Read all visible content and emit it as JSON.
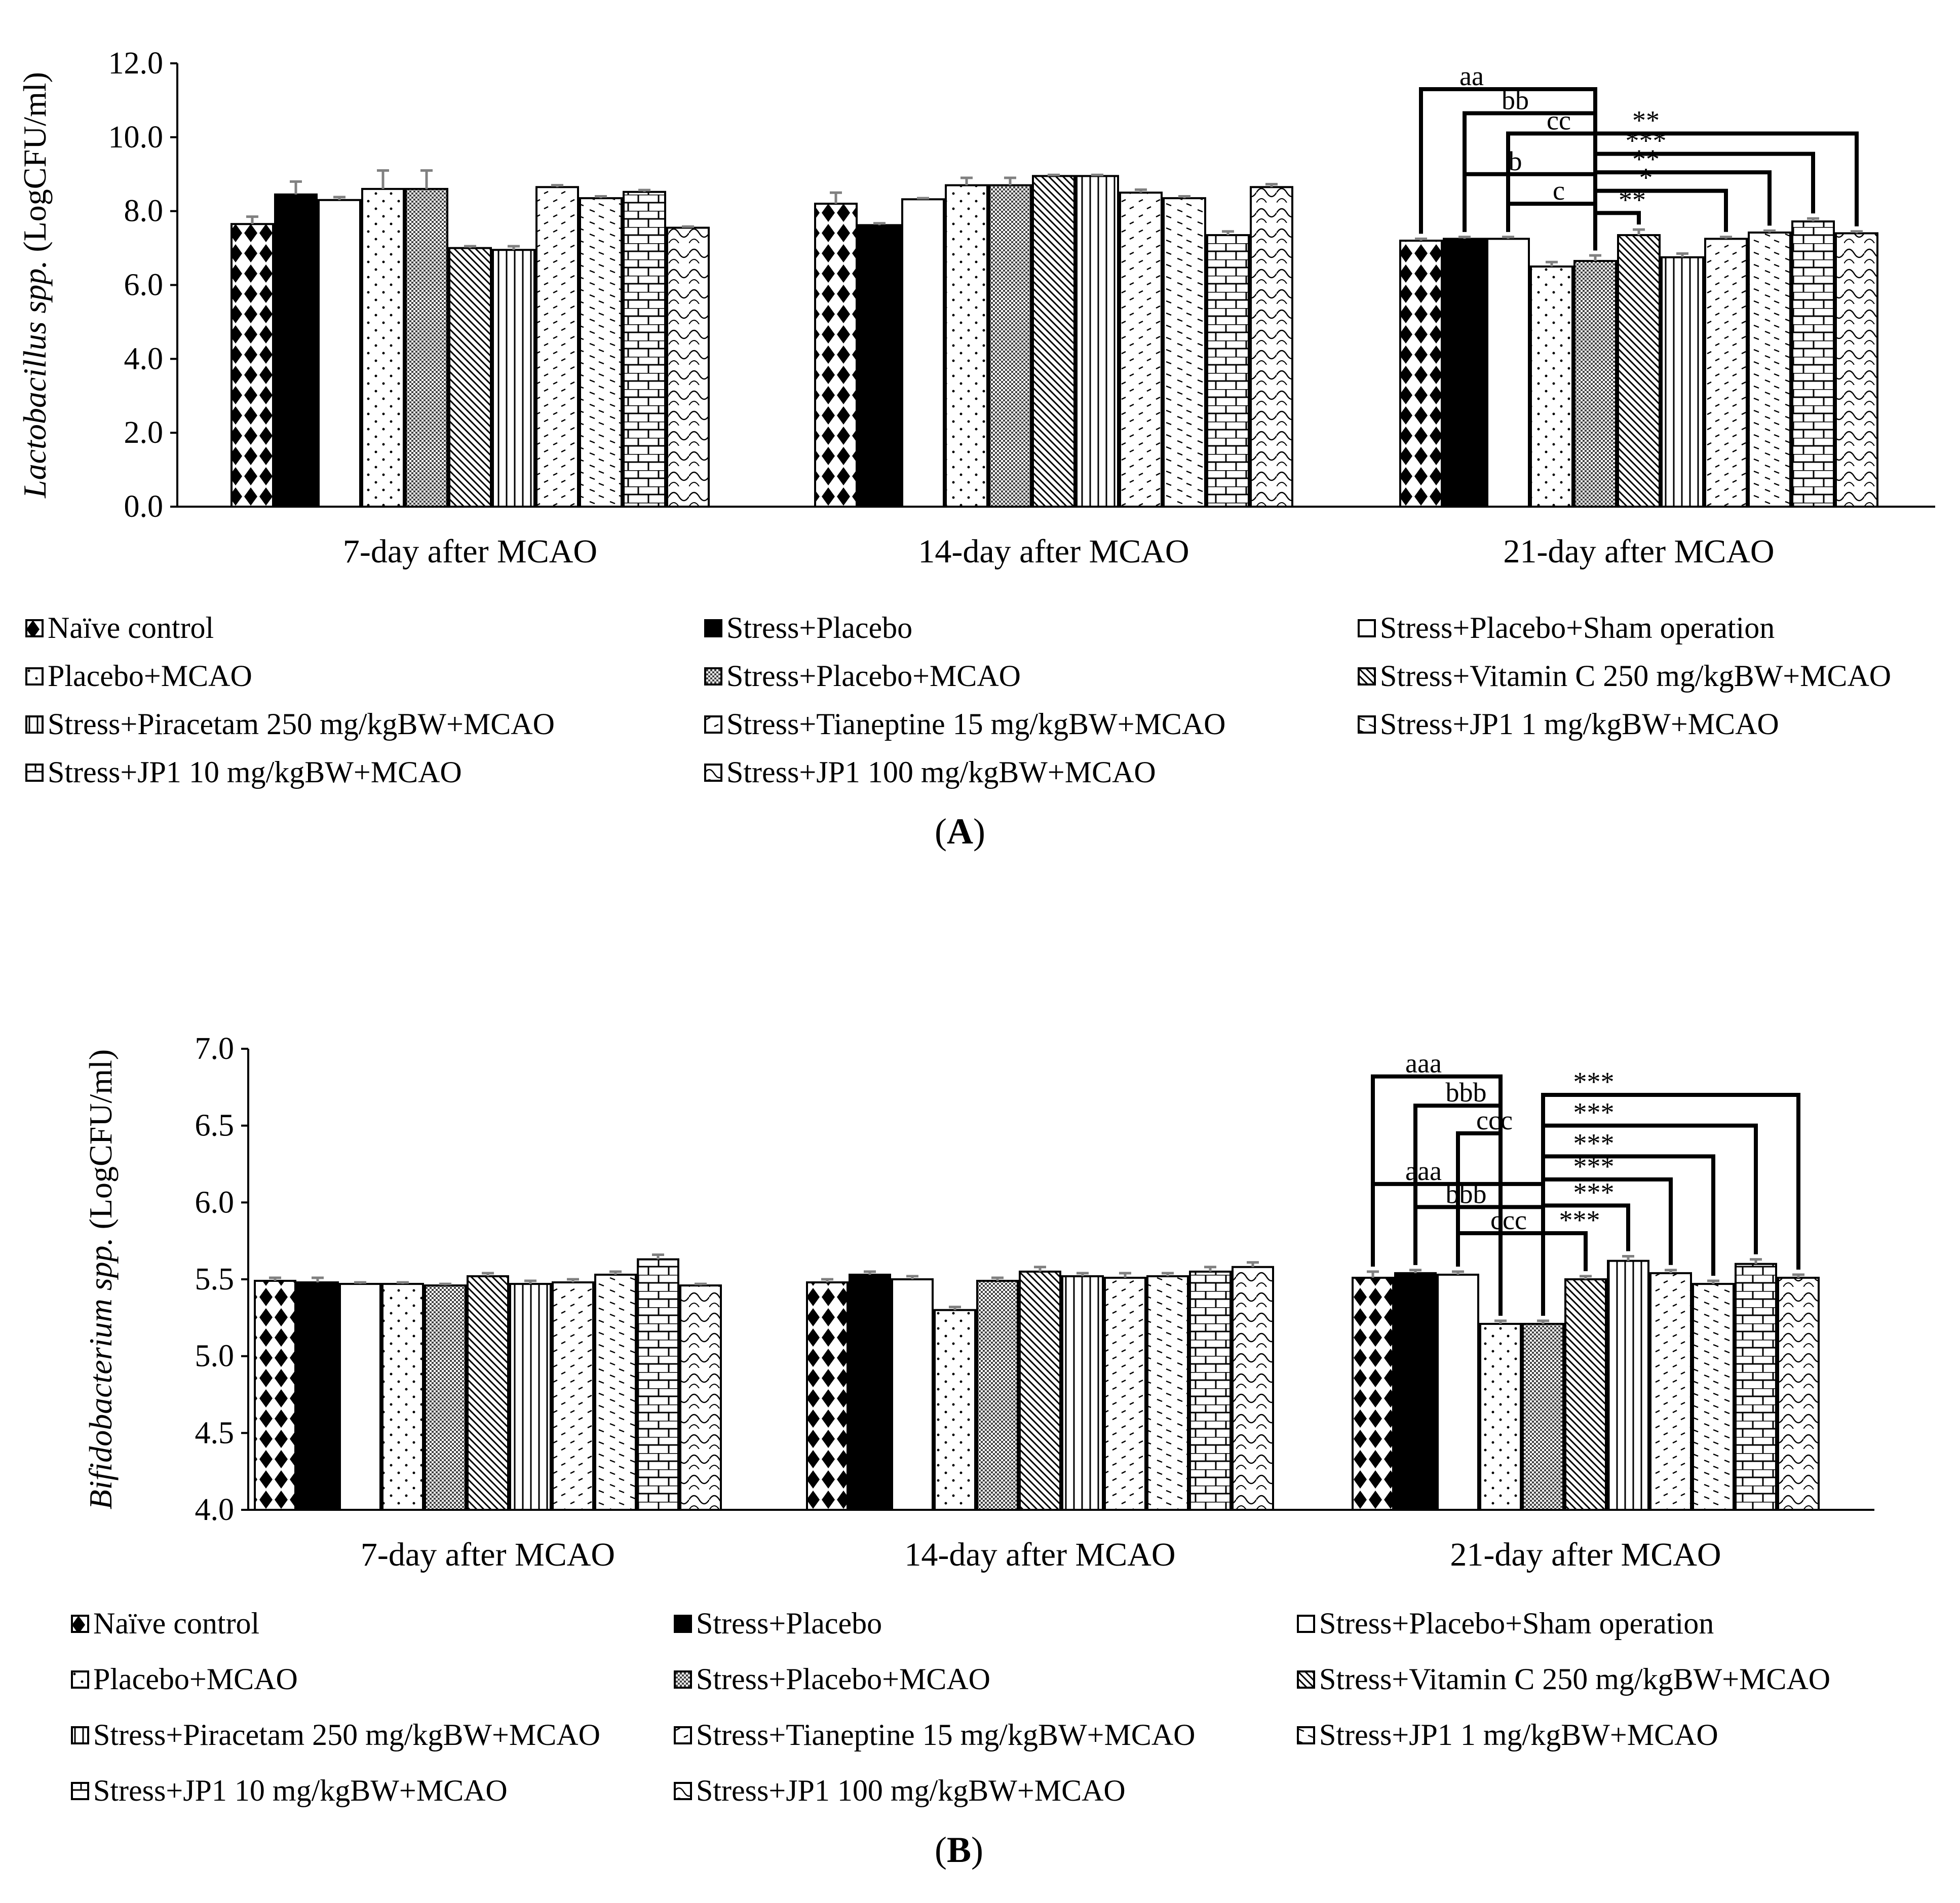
{
  "legend": [
    {
      "label": "Naïve control",
      "pattern": "diamond"
    },
    {
      "label": "Stress+Placebo",
      "pattern": "solid"
    },
    {
      "label": "Stress+Placebo+Sham operation",
      "pattern": "white"
    },
    {
      "label": "Placebo+MCAO",
      "pattern": "dots"
    },
    {
      "label": "Stress+Placebo+MCAO",
      "pattern": "grid"
    },
    {
      "label": "Stress+Vitamin C 250 mg/kgBW+MCAO",
      "pattern": "diag"
    },
    {
      "label": "Stress+Piracetam 250 mg/kgBW+MCAO",
      "pattern": "vlines"
    },
    {
      "label": "Stress+Tianeptine 15 mg/kgBW+MCAO",
      "pattern": "dash"
    },
    {
      "label": "Stress+JP1 1 mg/kgBW+MCAO",
      "pattern": "dash2"
    },
    {
      "label": "Stress+JP1 10 mg/kgBW+MCAO",
      "pattern": "brick"
    },
    {
      "label": "Stress+JP1 100 mg/kgBW+MCAO",
      "pattern": "wave"
    }
  ],
  "colors": {
    "bar_stroke": "#000000",
    "error_bar": "#808080",
    "axis": "#000000"
  },
  "chart_data": [
    {
      "type": "bar",
      "panel_label": "A",
      "title": "",
      "xlabel": "",
      "ylabel_italic": "Lactobacillus spp.",
      "ylabel_plain": "(LogCFU/ml)",
      "ylim": [
        0,
        12
      ],
      "yticks": [
        "0.0",
        "2.0",
        "4.0",
        "6.0",
        "8.0",
        "10.0",
        "12.0"
      ],
      "categories": [
        "7-day after MCAO",
        "14-day after MCAO",
        "21-day after MCAO"
      ],
      "series_values": [
        [
          7.65,
          8.2,
          7.2
        ],
        [
          8.45,
          7.62,
          7.25
        ],
        [
          8.3,
          8.32,
          7.25
        ],
        [
          8.6,
          8.7,
          6.5
        ],
        [
          8.6,
          8.7,
          6.65
        ],
        [
          7.0,
          8.95,
          7.35
        ],
        [
          6.95,
          8.95,
          6.75
        ],
        [
          8.65,
          8.5,
          7.25
        ],
        [
          8.35,
          8.35,
          7.42
        ],
        [
          8.52,
          7.35,
          7.72
        ],
        [
          7.55,
          8.65,
          7.4
        ]
      ],
      "series_errors": [
        [
          0.2,
          0.3,
          0.05
        ],
        [
          0.35,
          0.05,
          0.05
        ],
        [
          0.08,
          0.03,
          0.05
        ],
        [
          0.5,
          0.2,
          0.12
        ],
        [
          0.5,
          0.2,
          0.15
        ],
        [
          0.05,
          0.03,
          0.15
        ],
        [
          0.1,
          0.03,
          0.1
        ],
        [
          0.05,
          0.08,
          0.05
        ],
        [
          0.05,
          0.05,
          0.05
        ],
        [
          0.05,
          0.1,
          0.08
        ],
        [
          0.03,
          0.08,
          0.05
        ]
      ],
      "brackets": [
        {
          "from": 0,
          "to": 4,
          "y": 11.3,
          "label": "aa"
        },
        {
          "from": 1,
          "to": 4,
          "y": 10.65,
          "label": "bb"
        },
        {
          "from": 2,
          "to": 4,
          "y": 10.1,
          "label": "cc"
        },
        {
          "from": 1,
          "to": 4,
          "y": 9.0,
          "label": "b",
          "drop": true
        },
        {
          "from": 2,
          "to": 4,
          "y": 8.2,
          "label": "c",
          "drop": true
        },
        {
          "from": 4,
          "to": 10,
          "y": 10.1,
          "label": "**"
        },
        {
          "from": 4,
          "to": 9,
          "y": 9.55,
          "label": "***"
        },
        {
          "from": 4,
          "to": 8,
          "y": 9.05,
          "label": "**"
        },
        {
          "from": 4,
          "to": 7,
          "y": 8.55,
          "label": "*"
        },
        {
          "from": 4,
          "to": 5,
          "y": 7.95,
          "label": "**"
        }
      ]
    },
    {
      "type": "bar",
      "panel_label": "B",
      "title": "",
      "xlabel": "",
      "ylabel_italic": "Bifidobacterium spp.",
      "ylabel_plain": "(LogCFU/ml)",
      "ylim": [
        4,
        7
      ],
      "yticks": [
        "4.0",
        "4.5",
        "5.0",
        "5.5",
        "6.0",
        "6.5",
        "7.0"
      ],
      "categories": [
        "7-day after MCAO",
        "14-day after MCAO",
        "21-day after MCAO"
      ],
      "series_values": [
        [
          5.49,
          5.48,
          5.51
        ],
        [
          5.48,
          5.53,
          5.54
        ],
        [
          5.47,
          5.5,
          5.53
        ],
        [
          5.47,
          5.3,
          5.21
        ],
        [
          5.46,
          5.49,
          5.21
        ],
        [
          5.52,
          5.55,
          5.5
        ],
        [
          5.47,
          5.52,
          5.62
        ],
        [
          5.48,
          5.51,
          5.54
        ],
        [
          5.53,
          5.52,
          5.47
        ],
        [
          5.63,
          5.55,
          5.6
        ],
        [
          5.46,
          5.58,
          5.51
        ]
      ],
      "series_errors": [
        [
          0.02,
          0.02,
          0.04
        ],
        [
          0.03,
          0.02,
          0.02
        ],
        [
          0.01,
          0.02,
          0.02
        ],
        [
          0.01,
          0.02,
          0.02
        ],
        [
          0.01,
          0.02,
          0.02
        ],
        [
          0.02,
          0.03,
          0.02
        ],
        [
          0.02,
          0.02,
          0.03
        ],
        [
          0.02,
          0.03,
          0.02
        ],
        [
          0.02,
          0.02,
          0.02
        ],
        [
          0.03,
          0.03,
          0.03
        ],
        [
          0.01,
          0.03,
          0.02
        ]
      ],
      "brackets": [
        {
          "from": 0,
          "to": 3,
          "y": 6.82,
          "label": "aaa"
        },
        {
          "from": 1,
          "to": 3,
          "y": 6.63,
          "label": "bbb"
        },
        {
          "from": 2,
          "to": 3,
          "y": 6.45,
          "label": "ccc"
        },
        {
          "from": 0,
          "to": 4,
          "y": 6.12,
          "label": "aaa",
          "drop": true
        },
        {
          "from": 1,
          "to": 4,
          "y": 5.97,
          "label": "bbb",
          "drop": true
        },
        {
          "from": 2,
          "to": 4,
          "y": 5.8,
          "label": "ccc",
          "drop": true
        },
        {
          "from": 4,
          "to": 10,
          "y": 6.7,
          "label": "***"
        },
        {
          "from": 4,
          "to": 9,
          "y": 6.5,
          "label": "***"
        },
        {
          "from": 4,
          "to": 8,
          "y": 6.3,
          "label": "***"
        },
        {
          "from": 4,
          "to": 7,
          "y": 6.15,
          "label": "***"
        },
        {
          "from": 4,
          "to": 6,
          "y": 5.98,
          "label": "***"
        },
        {
          "from": 4,
          "to": 5,
          "y": 5.8,
          "label": "***"
        }
      ]
    }
  ]
}
